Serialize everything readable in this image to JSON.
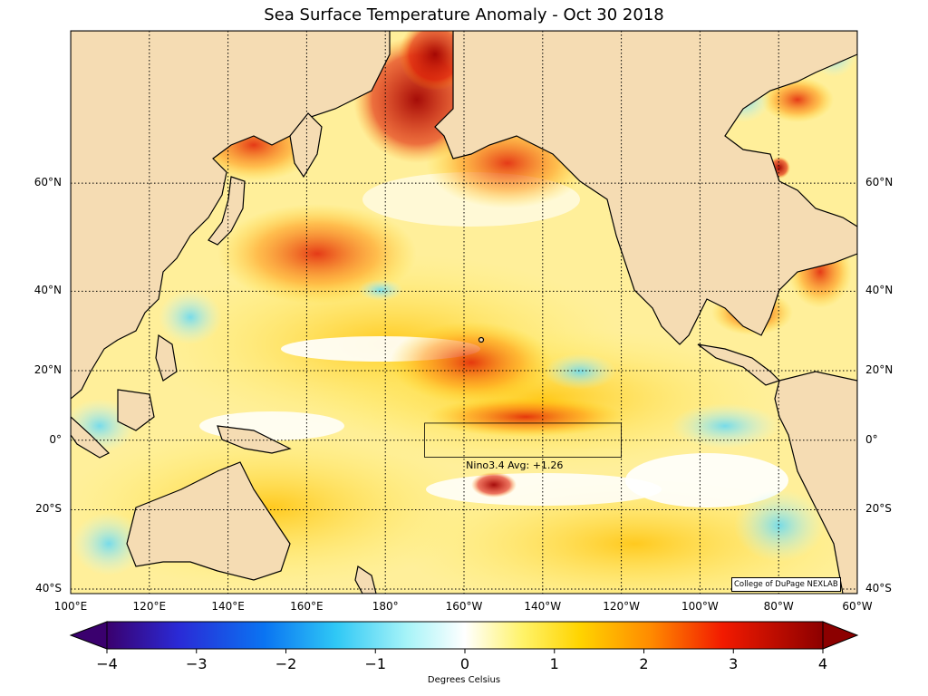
{
  "header": {
    "title": "Sea Surface Temperature Anomaly - Oct 30 2018"
  },
  "map": {
    "lat_labels": [
      {
        "lat": 60,
        "text": "60°N"
      },
      {
        "lat": 40,
        "text": "40°N"
      },
      {
        "lat": 20,
        "text": "20°N"
      },
      {
        "lat": 0,
        "text": "0°"
      },
      {
        "lat": -20,
        "text": "20°S"
      },
      {
        "lat": -40,
        "text": "40°S"
      }
    ],
    "lon_labels": [
      {
        "lon": 100,
        "text": "100°E"
      },
      {
        "lon": 120,
        "text": "120°E"
      },
      {
        "lon": 140,
        "text": "140°E"
      },
      {
        "lon": 160,
        "text": "160°E"
      },
      {
        "lon": 180,
        "text": "180°"
      },
      {
        "lon": 200,
        "text": "160°W"
      },
      {
        "lon": 220,
        "text": "140°W"
      },
      {
        "lon": 240,
        "text": "120°W"
      },
      {
        "lon": 260,
        "text": "100°W"
      },
      {
        "lon": 280,
        "text": "80°W"
      },
      {
        "lon": 300,
        "text": "60°W"
      }
    ],
    "nino_region": {
      "lon_min": 190,
      "lon_max": 240,
      "lat_min": -5,
      "lat_max": 5
    },
    "nino_label": "Nino3.4 Avg: +1.26",
    "credit": "College of DuPage NEXLAB",
    "colors": {
      "land": "#f5dcb3",
      "ocean_neutral": "#ffffff",
      "grid": "#000000"
    }
  },
  "colorbar": {
    "ticks": [
      "−4",
      "−3",
      "−2",
      "−1",
      "0",
      "1",
      "2",
      "3",
      "4"
    ],
    "range": [
      -4,
      4
    ],
    "label": "Degrees Celsius"
  }
}
